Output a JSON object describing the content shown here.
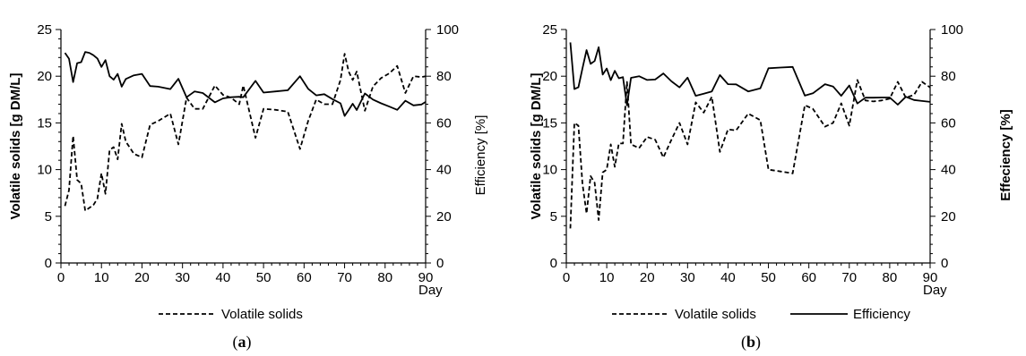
{
  "chart_data": [
    {
      "type": "line",
      "panel_label": "(a)",
      "panel_letter": "a",
      "xlabel": "Day",
      "ylabel": "Volatile solids [g DM/L]",
      "ylabel2": "Efficiency  [%]",
      "xlim": [
        0,
        90
      ],
      "ylim": [
        0,
        25
      ],
      "y2lim": [
        0,
        100
      ],
      "xticks": [
        "0",
        "10",
        "20",
        "30",
        "40",
        "50",
        "60",
        "70",
        "80",
        "90"
      ],
      "yticks": [
        "0",
        "5",
        "10",
        "15",
        "20",
        "25"
      ],
      "y2ticks": [
        "0",
        "20",
        "40",
        "60",
        "80",
        "100"
      ],
      "legend": [
        "Volatile solids"
      ],
      "series": [
        {
          "name": "Volatile solids",
          "axis": "left",
          "style": "dashed",
          "x": [
            1,
            2,
            3,
            4,
            5,
            6,
            7,
            8,
            9,
            10,
            11,
            12,
            13,
            14,
            15,
            16,
            18,
            20,
            22,
            24,
            27,
            29,
            31,
            33,
            35,
            38,
            40,
            42,
            44,
            45,
            48,
            50,
            53,
            56,
            59,
            61,
            63,
            65,
            67,
            69,
            70,
            71,
            72,
            73,
            75,
            77,
            79,
            81,
            83,
            85,
            87,
            89,
            90
          ],
          "y": [
            6.1,
            7.8,
            13.6,
            8.9,
            8.5,
            5.6,
            5.9,
            6.2,
            6.9,
            9.6,
            7.4,
            12.1,
            12.4,
            11.1,
            14.9,
            13.0,
            11.7,
            11.3,
            14.8,
            15.2,
            16.0,
            12.7,
            17.7,
            16.5,
            16.5,
            19.0,
            18.0,
            17.7,
            17.0,
            19.0,
            13.4,
            16.5,
            16.4,
            16.2,
            12.2,
            15.2,
            17.5,
            17.0,
            17.0,
            19.6,
            22.4,
            20.5,
            19.6,
            20.5,
            16.3,
            18.9,
            19.8,
            20.3,
            21.1,
            18.2,
            20.0,
            19.9,
            20.0
          ]
        },
        {
          "name": "Efficiency",
          "axis": "right",
          "style": "solid",
          "x": [
            1,
            2,
            3,
            4,
            5,
            6,
            7,
            8,
            9,
            10,
            11,
            12,
            13,
            14,
            15,
            16,
            18,
            20,
            22,
            24,
            27,
            29,
            31,
            33,
            35,
            38,
            40,
            42,
            44,
            45,
            48,
            50,
            53,
            56,
            59,
            61,
            63,
            65,
            67,
            69,
            70,
            71,
            72,
            73,
            75,
            77,
            79,
            81,
            83,
            85,
            87,
            89,
            90
          ],
          "y": [
            90.0,
            87.5,
            77.5,
            85.6,
            86.0,
            90.4,
            90.0,
            89.0,
            87.6,
            84.0,
            86.9,
            80.0,
            78.5,
            81.0,
            75.5,
            78.8,
            80.4,
            81.0,
            75.8,
            75.5,
            74.5,
            78.9,
            71.0,
            73.5,
            72.8,
            68.8,
            70.5,
            71.0,
            71.2,
            71.0,
            78.0,
            73.0,
            73.5,
            74.0,
            80.0,
            74.6,
            71.8,
            72.3,
            70.2,
            68.4,
            63.0,
            65.5,
            68.2,
            65.5,
            72.6,
            70.0,
            68.4,
            67.0,
            65.6,
            69.5,
            67.5,
            67.9,
            69.0
          ]
        }
      ]
    },
    {
      "type": "line",
      "panel_label": "(b)",
      "panel_letter": "b",
      "xlabel": "Day",
      "ylabel": "Volatile solids [g DM/L]",
      "ylabel2": "Effeciency [%]",
      "xlim": [
        0,
        90
      ],
      "ylim": [
        0,
        25
      ],
      "y2lim": [
        0,
        100
      ],
      "xticks": [
        "0",
        "10",
        "20",
        "30",
        "40",
        "50",
        "60",
        "70",
        "80",
        "90"
      ],
      "yticks": [
        "0",
        "5",
        "10",
        "15",
        "20",
        "25"
      ],
      "y2ticks": [
        "0",
        "20",
        "40",
        "60",
        "80",
        "100"
      ],
      "legend": [
        "Volatile solids",
        "Efficiency"
      ],
      "series": [
        {
          "name": "Volatile solids",
          "axis": "left",
          "style": "dashed",
          "x": [
            1,
            2,
            3,
            4,
            5,
            6,
            7,
            8,
            9,
            10,
            11,
            12,
            13,
            14,
            15,
            16,
            18,
            20,
            22,
            24,
            26,
            28,
            30,
            32,
            34,
            36,
            38,
            40,
            42,
            45,
            48,
            50,
            53,
            56,
            59,
            61,
            64,
            66,
            68,
            70,
            72,
            74,
            76,
            78,
            80,
            82,
            84,
            86,
            88,
            90
          ],
          "y": [
            3.7,
            15.0,
            14.7,
            8.5,
            5.3,
            9.3,
            8.6,
            4.6,
            9.7,
            10.0,
            12.7,
            10.3,
            12.8,
            12.8,
            19.4,
            12.7,
            12.3,
            13.5,
            13.2,
            11.3,
            13.2,
            15.0,
            12.7,
            17.2,
            16.1,
            17.8,
            11.9,
            14.3,
            14.2,
            16.0,
            15.3,
            10.0,
            9.8,
            9.6,
            16.9,
            16.5,
            14.6,
            15.0,
            17.1,
            14.7,
            19.6,
            17.4,
            17.3,
            17.4,
            17.6,
            19.4,
            17.7,
            18.0,
            19.4,
            18.8
          ]
        },
        {
          "name": "Efficiency",
          "axis": "right",
          "style": "solid",
          "x": [
            1,
            2,
            3,
            4,
            5,
            6,
            7,
            8,
            9,
            10,
            11,
            12,
            13,
            14,
            15,
            16,
            18,
            20,
            22,
            24,
            26,
            28,
            30,
            32,
            34,
            36,
            38,
            40,
            42,
            45,
            48,
            50,
            53,
            56,
            59,
            61,
            64,
            66,
            68,
            70,
            72,
            74,
            76,
            78,
            80,
            82,
            84,
            86,
            88,
            90
          ],
          "y": [
            94.5,
            74.5,
            75.3,
            83.3,
            91.2,
            85.3,
            86.5,
            92.4,
            80.7,
            83.3,
            78.3,
            82.3,
            79.1,
            79.6,
            67.6,
            79.3,
            80.0,
            78.4,
            78.6,
            81.2,
            77.8,
            75.2,
            79.4,
            71.6,
            72.5,
            73.5,
            80.5,
            76.6,
            76.5,
            73.5,
            74.8,
            83.4,
            83.7,
            84.0,
            71.7,
            72.7,
            76.6,
            75.6,
            71.6,
            76.0,
            68.3,
            70.8,
            70.8,
            70.9,
            70.9,
            67.8,
            71.2,
            69.8,
            69.4,
            69.0
          ]
        }
      ]
    }
  ]
}
